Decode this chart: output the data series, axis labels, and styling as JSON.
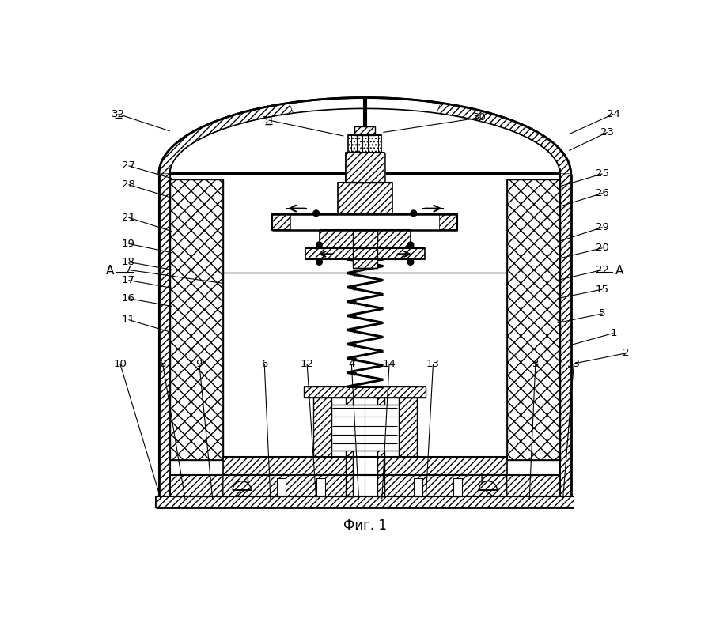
{
  "fig_caption": "Фиг. 1",
  "bg_color": "#ffffff",
  "labels_left": [
    [
      "32",
      45,
      728
    ],
    [
      "27",
      62,
      640
    ],
    [
      "28",
      62,
      608
    ],
    [
      "21",
      62,
      553
    ],
    [
      "19",
      62,
      512
    ],
    [
      "18",
      62,
      482
    ],
    [
      "17",
      62,
      452
    ],
    [
      "16",
      62,
      422
    ],
    [
      "7",
      62,
      468
    ],
    [
      "11",
      62,
      390
    ]
  ],
  "labels_right": [
    [
      "24",
      858,
      728
    ],
    [
      "23",
      848,
      700
    ],
    [
      "25",
      840,
      628
    ],
    [
      "26",
      840,
      595
    ],
    [
      "29",
      840,
      538
    ],
    [
      "20",
      840,
      505
    ],
    [
      "22",
      840,
      468
    ],
    [
      "15",
      840,
      438
    ],
    [
      "5",
      840,
      400
    ],
    [
      "1",
      858,
      368
    ],
    [
      "2",
      875,
      338
    ]
  ],
  "labels_bottom": [
    [
      "10",
      48,
      318
    ],
    [
      "8",
      118,
      318
    ],
    [
      "9",
      178,
      318
    ],
    [
      "6",
      285,
      318
    ],
    [
      "12",
      355,
      318
    ],
    [
      "4",
      428,
      318
    ],
    [
      "14",
      490,
      318
    ],
    [
      "13",
      562,
      318
    ],
    [
      "3",
      730,
      318
    ],
    [
      "33",
      793,
      318
    ]
  ],
  "labels_top": [
    [
      "31",
      292,
      718
    ],
    [
      "30",
      638,
      722
    ],
    [
      "32",
      45,
      728
    ]
  ],
  "underlined": [
    "32",
    "31",
    "30",
    "24",
    "23"
  ]
}
